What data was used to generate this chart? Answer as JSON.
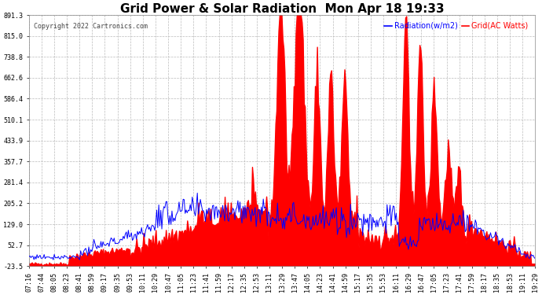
{
  "title": "Grid Power & Solar Radiation  Mon Apr 18 19:33",
  "copyright": "Copyright 2022 Cartronics.com",
  "legend_radiation": "Radiation(w/m2)",
  "legend_grid": "Grid(AC Watts)",
  "yticks": [
    891.3,
    815.0,
    738.8,
    662.6,
    586.4,
    510.1,
    433.9,
    357.7,
    281.4,
    205.2,
    129.0,
    52.7,
    -23.5
  ],
  "xtick_labels": [
    "07:16",
    "07:44",
    "08:05",
    "08:23",
    "08:41",
    "08:59",
    "09:17",
    "09:35",
    "09:53",
    "10:11",
    "10:29",
    "10:47",
    "11:05",
    "11:23",
    "11:41",
    "11:59",
    "12:17",
    "12:35",
    "12:53",
    "13:11",
    "13:29",
    "13:47",
    "14:05",
    "14:23",
    "14:41",
    "14:59",
    "15:17",
    "15:35",
    "15:53",
    "16:11",
    "16:29",
    "16:47",
    "17:05",
    "17:23",
    "17:41",
    "17:59",
    "18:17",
    "18:35",
    "18:53",
    "19:11",
    "19:29"
  ],
  "ymin": -23.5,
  "ymax": 891.3,
  "title_fontsize": 11,
  "axis_fontsize": 6,
  "legend_fontsize": 7,
  "bg_color": "#ffffff",
  "grid_color": "#bbbbbb",
  "red_color": "#ff0000",
  "blue_color": "#0000ff",
  "copyright_color": "#444444",
  "title_color": "#000000"
}
